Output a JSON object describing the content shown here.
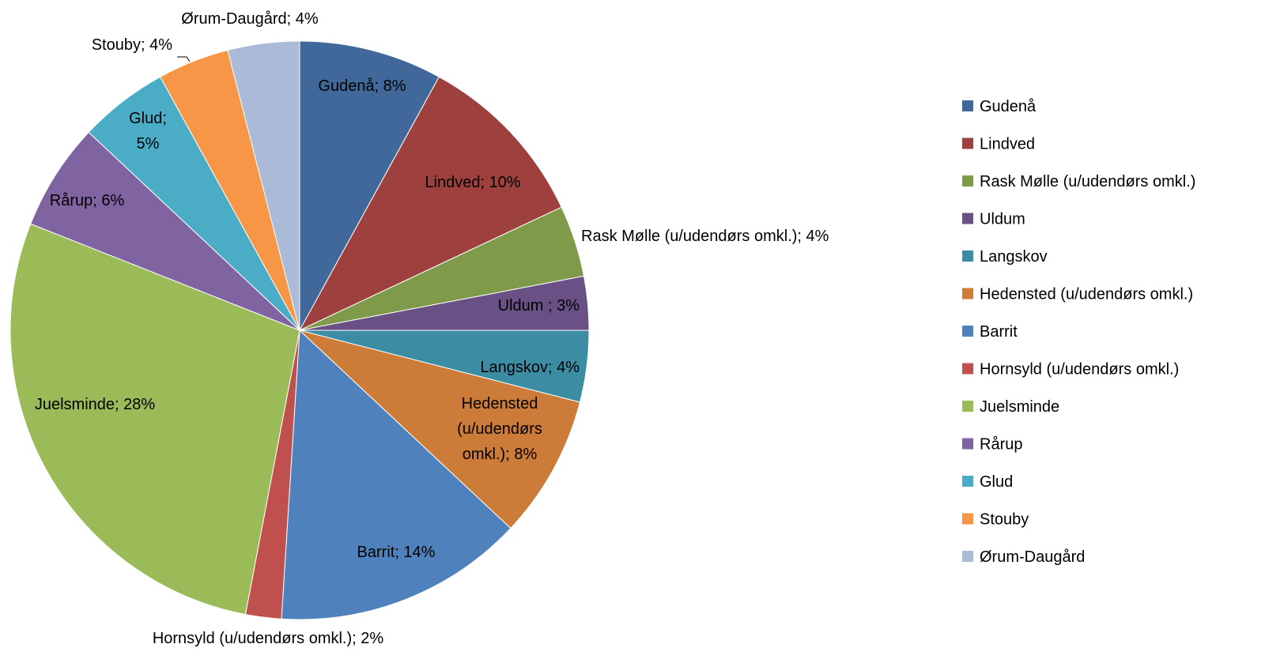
{
  "chart_data": {
    "type": "pie",
    "title": "",
    "legend_position": "right",
    "slices": [
      {
        "name": "Gudenå",
        "value": 8,
        "label": "Gudenå; 8%",
        "color": "#41689a"
      },
      {
        "name": "Lindved",
        "value": 10,
        "label": "Lindved; 10%",
        "color": "#9e413e"
      },
      {
        "name": "Rask Mølle (u/udendørs omkl.)",
        "value": 4,
        "label": "Rask Mølle (u/udendørs omkl.); 4%",
        "color": "#7f9a48"
      },
      {
        "name": "Uldum",
        "value": 3,
        "label": "Uldum ; 3%",
        "color": "#695185"
      },
      {
        "name": "Langskov",
        "value": 4,
        "label": "Langskov; 4%",
        "color": "#3c8da3"
      },
      {
        "name": "Hedensted (u/udendørs omkl.)",
        "value": 8,
        "label": "Hedensted (u/udendørs omkl.); 8%",
        "color": "#cc7b38"
      },
      {
        "name": "Barrit",
        "value": 14,
        "label": "Barrit; 14%",
        "color": "#4f81bd"
      },
      {
        "name": "Hornsyld (u/udendørs omkl.)",
        "value": 2,
        "label": "Hornsyld (u/udendørs omkl.); 2%",
        "color": "#c0504d"
      },
      {
        "name": "Juelsminde",
        "value": 28,
        "label": "Juelsminde; 28%",
        "color": "#9bbb59"
      },
      {
        "name": "Rårup",
        "value": 6,
        "label": "Rårup; 6%",
        "color": "#8064a2"
      },
      {
        "name": "Glud",
        "value": 5,
        "label": "Glud; 5%",
        "color": "#4bacc6"
      },
      {
        "name": "Stouby",
        "value": 4,
        "label": "Stouby; 4%",
        "color": "#f79646"
      },
      {
        "name": "Ørum-Daugård",
        "value": 4,
        "label": "Ørum-Daugård; 4%",
        "color": "#aabad7"
      }
    ]
  }
}
